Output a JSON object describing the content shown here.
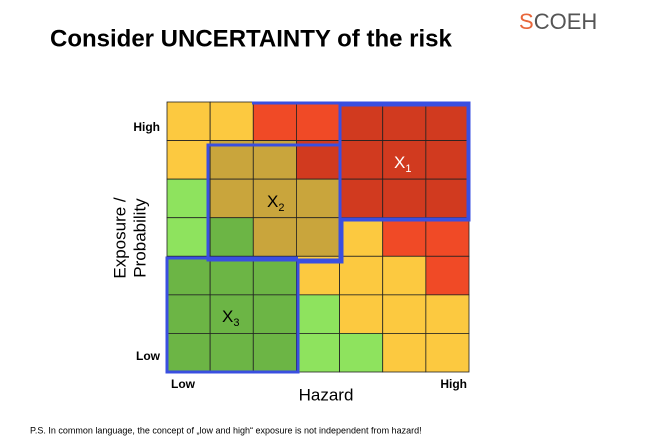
{
  "title": "Consider UNCERTAINTY of the risk",
  "logo": {
    "first": "S",
    "rest": "COEH"
  },
  "y_axis": {
    "label_lines": [
      "Exposure /",
      "Probability"
    ],
    "high": "High",
    "low": "Low"
  },
  "x_axis": {
    "label": "Hazard",
    "low": "Low",
    "high": "High"
  },
  "regions": [
    {
      "label": "X",
      "subscript": "1"
    },
    {
      "label": "X",
      "subscript": "2"
    },
    {
      "label": "X",
      "subscript": "3"
    }
  ],
  "footnote": "P.S. In common language, the concept of „low and high“ exposure is not independent from hazard!"
}
